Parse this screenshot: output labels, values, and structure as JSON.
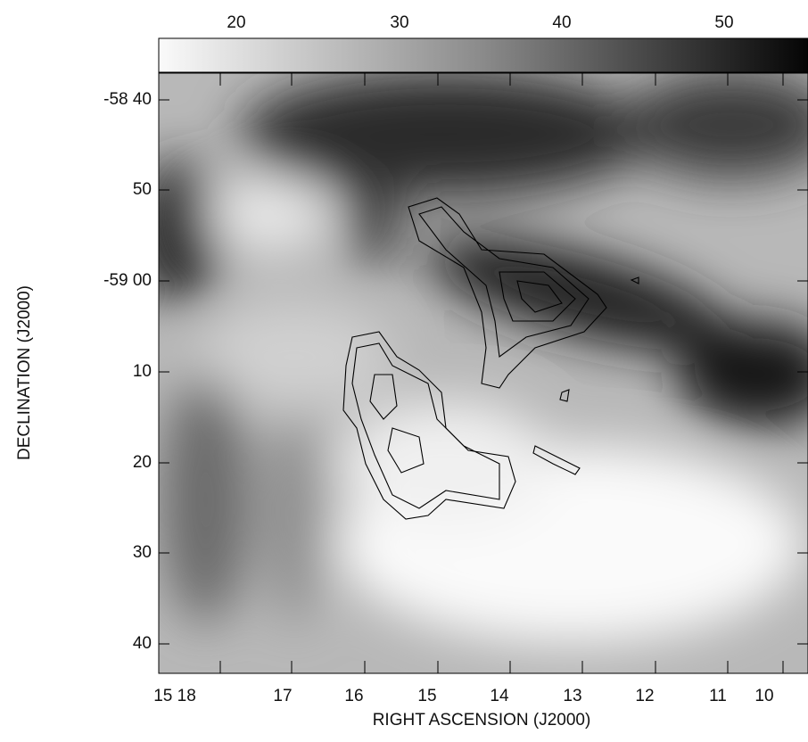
{
  "colorbar": {
    "ticks": [
      "20",
      "30",
      "40",
      "50"
    ]
  },
  "y_axis": {
    "label": "DECLINATION (J2000)",
    "ticks": [
      "-58 40",
      "50",
      "-59 00",
      "10",
      "20",
      "30",
      "40"
    ]
  },
  "x_axis": {
    "label": "RIGHT ASCENSION (J2000)",
    "ticks": [
      "15 18",
      "17",
      "16",
      "15",
      "14",
      "13",
      "12",
      "11",
      "10"
    ]
  }
}
